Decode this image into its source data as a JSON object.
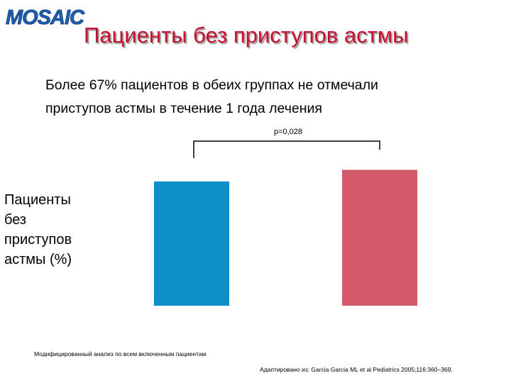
{
  "logo_text": "MOSAIC",
  "title": "Пациенты без приступов астмы",
  "subtitle_line1": "Более 67% пациентов в обеих группах не отмечали",
  "subtitle_line2": "приступов астмы в течение 1 года лечения",
  "ylabel_lines": [
    "Пациенты",
    "без",
    "приступов",
    "астмы (%)"
  ],
  "pvalue": "p=0,028",
  "footnote_left": "Модифицированный анализ по всем включенным пациентам",
  "footnote_right": "Адаптировано из: Garcia Garcia ML et al Pediatrics 2005;116:360–369.",
  "colors": {
    "title": "#c8102e",
    "bar1": "#0e8fc7",
    "bar2": "#d35a69",
    "logo": "#1f5fb0"
  },
  "chart_data": {
    "type": "bar",
    "categories": [
      "",
      ""
    ],
    "values": [
      69.5,
      76.0
    ],
    "ylim": [
      0,
      100
    ],
    "grid": false,
    "legend": "none",
    "annotations": [
      "p=0,028"
    ]
  }
}
